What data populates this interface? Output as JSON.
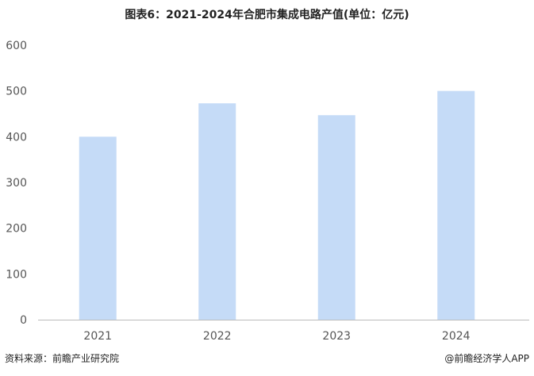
{
  "title": "图表6：2021-2024年合肥市集成电路产值(单位：亿元)",
  "chart_data": {
    "type": "bar",
    "title": "图表6：2021-2024年合肥市集成电路产值(单位：亿元)",
    "categories": [
      "2021",
      "2022",
      "2023",
      "2024"
    ],
    "values": [
      400,
      473,
      447,
      500
    ],
    "ylim": [
      0,
      600
    ],
    "yticks": [
      0,
      100,
      200,
      300,
      400,
      500,
      600
    ],
    "xlabel": "",
    "ylabel": "",
    "grid": false,
    "bar_color": "#c5dbf7"
  },
  "footer": {
    "source": "资料来源：前瞻产业研究院",
    "brand": "@前瞻经济学人APP"
  }
}
